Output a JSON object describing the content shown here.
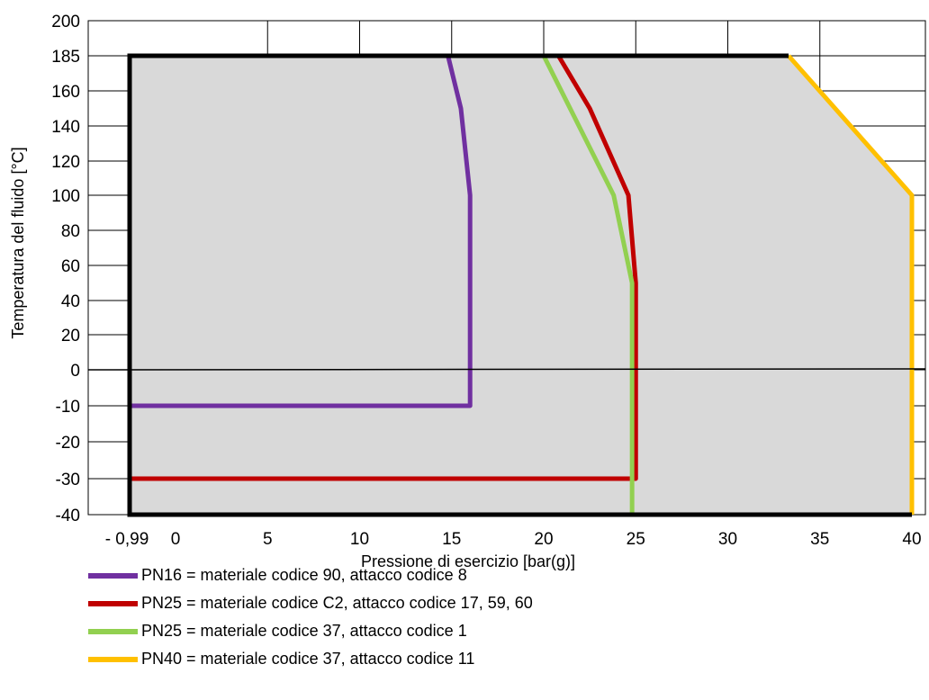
{
  "chart_data": {
    "type": "line",
    "xlabel": "Pressione di esercizio [bar(g)]",
    "ylabel": "Temperatura del fluido [°C]",
    "xlim": [
      -0.99,
      40
    ],
    "ylim": [
      -40,
      200
    ],
    "x_ticks": [
      {
        "value": -0.99,
        "label": "- 0,99"
      },
      {
        "value": 0,
        "label": "0"
      },
      {
        "value": 5,
        "label": "5"
      },
      {
        "value": 10,
        "label": "10"
      },
      {
        "value": 15,
        "label": "15"
      },
      {
        "value": 20,
        "label": "20"
      },
      {
        "value": 25,
        "label": "25"
      },
      {
        "value": 30,
        "label": "30"
      },
      {
        "value": 35,
        "label": "35"
      },
      {
        "value": 40,
        "label": "40"
      }
    ],
    "y_ticks": [
      {
        "value": -40,
        "label": "-40"
      },
      {
        "value": -30,
        "label": "-30"
      },
      {
        "value": -20,
        "label": "-20"
      },
      {
        "value": -10,
        "label": "-10"
      },
      {
        "value": 0,
        "label": "0"
      },
      {
        "value": 20,
        "label": "20"
      },
      {
        "value": 40,
        "label": "40"
      },
      {
        "value": 60,
        "label": "60"
      },
      {
        "value": 80,
        "label": "80"
      },
      {
        "value": 100,
        "label": "100"
      },
      {
        "value": 120,
        "label": "120"
      },
      {
        "value": 140,
        "label": "140"
      },
      {
        "value": 160,
        "label": "160"
      },
      {
        "value": 185,
        "label": "185"
      },
      {
        "value": 200,
        "label": "200"
      }
    ],
    "grid": true,
    "operating_area": {
      "points": [
        [
          -0.99,
          -40
        ],
        [
          -0.99,
          185
        ],
        [
          33.3,
          185
        ],
        [
          40,
          100
        ],
        [
          40,
          -40
        ]
      ],
      "fill": "#d9d9d9",
      "border": "#000000"
    },
    "series": [
      {
        "name": "PN16 = materiale codice 90, attacco codice 8",
        "color": "#7030a0",
        "points": [
          [
            -0.99,
            -10
          ],
          [
            16,
            -10
          ],
          [
            16,
            100
          ],
          [
            15.5,
            150
          ],
          [
            14.8,
            185
          ]
        ]
      },
      {
        "name": "PN25 = materiale codice C2, attacco codice 17, 59, 60",
        "color": "#c00000",
        "points": [
          [
            -0.99,
            -30
          ],
          [
            25,
            -30
          ],
          [
            25,
            50
          ],
          [
            24.6,
            100
          ],
          [
            22.5,
            150
          ],
          [
            20.8,
            185
          ]
        ]
      },
      {
        "name": "PN25 = materiale codice 37, attacco codice 1",
        "color": "#92d050",
        "points": [
          [
            -0.99,
            -40
          ],
          [
            24.8,
            -40
          ],
          [
            24.8,
            50
          ],
          [
            23.8,
            100
          ],
          [
            20,
            185
          ]
        ]
      },
      {
        "name": "PN40 = materiale codice 37, attacco codice 11",
        "color": "#ffc000",
        "points": [
          [
            33.3,
            185
          ],
          [
            40,
            100
          ],
          [
            40,
            -40
          ]
        ]
      }
    ]
  }
}
